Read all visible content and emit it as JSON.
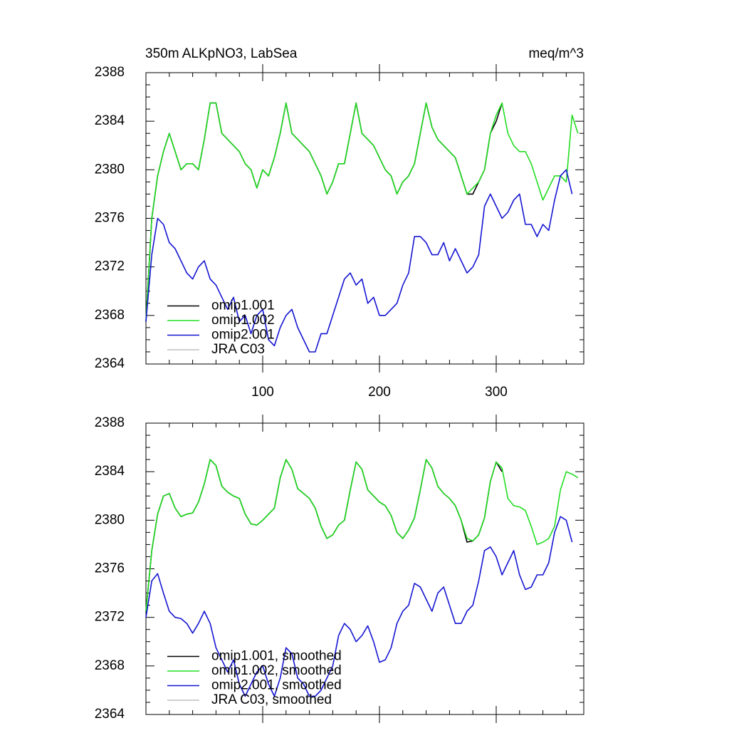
{
  "chart_data": [
    {
      "type": "line",
      "title": "350m ALKpNO3, LabSea",
      "units": "meq/m^3",
      "x": [
        0,
        5,
        10,
        15,
        20,
        25,
        30,
        35,
        40,
        45,
        50,
        55,
        60,
        65,
        70,
        75,
        80,
        85,
        90,
        95,
        100,
        105,
        110,
        115,
        120,
        125,
        130,
        135,
        140,
        145,
        150,
        155,
        160,
        165,
        170,
        175,
        180,
        185,
        190,
        195,
        200,
        205,
        210,
        215,
        220,
        225,
        230,
        235,
        240,
        245,
        250,
        255,
        260,
        265,
        270,
        275,
        280,
        285,
        290,
        295,
        300,
        305,
        310,
        315,
        320,
        325,
        330,
        335,
        340,
        345,
        350,
        355,
        360,
        365,
        370
      ],
      "xlim": [
        0,
        375
      ],
      "xticks": [
        100,
        200,
        300
      ],
      "ylim": [
        2364,
        2388
      ],
      "yticks": [
        2364,
        2368,
        2372,
        2376,
        2380,
        2384,
        2388
      ],
      "legend": "bottom-left",
      "series": [
        {
          "name": "omip1.001",
          "color": "#000000",
          "values": [
            2367.5,
            2376,
            2379.5,
            2381.5,
            2383,
            2381.5,
            2380,
            2380.5,
            2380.5,
            2380,
            2382.5,
            2385.5,
            2385.5,
            2383,
            2382.5,
            2382,
            2381.5,
            2380.5,
            2380,
            2378.5,
            2380,
            2379.5,
            2381,
            2383,
            2385.5,
            2383,
            2382.5,
            2382,
            2381.5,
            2380.5,
            2379.5,
            2378,
            2379,
            2380.5,
            2380.5,
            2383,
            2385.5,
            2383,
            2382.5,
            2382,
            2381,
            2380,
            2379.5,
            2378,
            2379,
            2379.5,
            2380.5,
            2383,
            2385.5,
            2383.5,
            2382.5,
            2382,
            2381.5,
            2381,
            2379.5,
            2378,
            2378,
            2379,
            2380,
            2383,
            2384,
            2385.5,
            null,
            null,
            null,
            null,
            null,
            null,
            null,
            null,
            null,
            null,
            null,
            null,
            null
          ]
        },
        {
          "name": "omip1.002",
          "color": "#22dd22",
          "values": [
            2367.5,
            2376,
            2379.5,
            2381.5,
            2383,
            2381.5,
            2380,
            2380.5,
            2380.5,
            2380,
            2382.5,
            2385.5,
            2385.5,
            2383,
            2382.5,
            2382,
            2381.5,
            2380.5,
            2380,
            2378.5,
            2380,
            2379.5,
            2381,
            2383,
            2385.5,
            2383,
            2382.5,
            2382,
            2381.5,
            2380.5,
            2379.5,
            2378,
            2379,
            2380.5,
            2380.5,
            2383,
            2385.5,
            2383,
            2382.5,
            2382,
            2381,
            2380,
            2379.5,
            2378,
            2379,
            2379.5,
            2380.5,
            2383,
            2385.5,
            2383.5,
            2382.5,
            2382,
            2381.5,
            2381,
            2379.5,
            2378,
            2378.5,
            2379,
            2380,
            2383,
            2384.5,
            2385.5,
            2383,
            2382,
            2381.5,
            2381.5,
            2380.5,
            2379,
            2377.5,
            2378.5,
            2379.5,
            2379.5,
            2379,
            2384.5,
            2383
          ]
        },
        {
          "name": "omip2.001",
          "color": "#1414d2",
          "values": [
            2367.5,
            2373,
            2376,
            2375.5,
            2374,
            2373.5,
            2372.5,
            2371.5,
            2371,
            2372,
            2372.5,
            2371,
            2370.5,
            2369.5,
            2368.5,
            2369.5,
            2367.5,
            2368,
            2366.5,
            2368,
            2368.5,
            2366,
            2365.5,
            2367,
            2368,
            2368.5,
            2367,
            2366,
            2365,
            2365,
            2366.5,
            2366.5,
            2368,
            2369.5,
            2371,
            2371.5,
            2370.5,
            2371,
            2369,
            2369.5,
            2368,
            2368,
            2368.5,
            2369,
            2370.5,
            2371.5,
            2374.5,
            2374.5,
            2374,
            2373,
            2373,
            2374,
            2372.5,
            2373.5,
            2372.5,
            2371.5,
            2372,
            2373,
            2377,
            2378,
            2377,
            2376,
            2376.5,
            2377.5,
            2378,
            2375.5,
            2375.5,
            2374.5,
            2375.5,
            2375,
            2377.5,
            2379.5,
            2380,
            2378,
            null
          ]
        },
        {
          "name": "JRA C03",
          "color": "#c0c0c0",
          "values": [
            null,
            null,
            null,
            null,
            null,
            null,
            null,
            null,
            null,
            null,
            null,
            null,
            null,
            null,
            null,
            null,
            null,
            null,
            null,
            null,
            null,
            null,
            null,
            null,
            null,
            null,
            null,
            null,
            null,
            null,
            null,
            null,
            null,
            null,
            null,
            null,
            null,
            null,
            null,
            null,
            null,
            null,
            null,
            null,
            null,
            null,
            null,
            null,
            null,
            null,
            null,
            null,
            null,
            null,
            null,
            null,
            null,
            null,
            null,
            null,
            null,
            null,
            null,
            null,
            null,
            null,
            null,
            null,
            null,
            null,
            null,
            null,
            null,
            null,
            null
          ]
        }
      ]
    },
    {
      "type": "line",
      "x": [
        0,
        5,
        10,
        15,
        20,
        25,
        30,
        35,
        40,
        45,
        50,
        55,
        60,
        65,
        70,
        75,
        80,
        85,
        90,
        95,
        100,
        105,
        110,
        115,
        120,
        125,
        130,
        135,
        140,
        145,
        150,
        155,
        160,
        165,
        170,
        175,
        180,
        185,
        190,
        195,
        200,
        205,
        210,
        215,
        220,
        225,
        230,
        235,
        240,
        245,
        250,
        255,
        260,
        265,
        270,
        275,
        280,
        285,
        290,
        295,
        300,
        305,
        310,
        315,
        320,
        325,
        330,
        335,
        340,
        345,
        350,
        355,
        360,
        365,
        370
      ],
      "xlim": [
        0,
        375
      ],
      "xticks": [
        100,
        200,
        300
      ],
      "ylim": [
        2364,
        2388
      ],
      "yticks": [
        2364,
        2368,
        2372,
        2376,
        2380,
        2384,
        2388
      ],
      "legend": "bottom-left",
      "series": [
        {
          "name": "omip1.001, smoothed",
          "color": "#000000",
          "values": [
            2372.5,
            2377.5,
            2380.5,
            2382,
            2382.2,
            2381,
            2380.3,
            2380.5,
            2380.6,
            2381.5,
            2383,
            2385,
            2384.5,
            2382.8,
            2382.3,
            2382,
            2381.8,
            2380.5,
            2379.7,
            2379.6,
            2380,
            2380.5,
            2381,
            2383.5,
            2385,
            2384.2,
            2382.6,
            2382.2,
            2381.8,
            2381,
            2379.5,
            2378.5,
            2378.8,
            2379.6,
            2380,
            2382.5,
            2384.8,
            2384.2,
            2382.5,
            2382,
            2381.5,
            2381.2,
            2380.4,
            2379,
            2378.5,
            2379.2,
            2380.2,
            2382.5,
            2385,
            2384.3,
            2382.8,
            2382.2,
            2381.8,
            2381.2,
            2380,
            2378.2,
            2378.3,
            2378.8,
            2380.2,
            2383.2,
            2384.8,
            2384,
            null,
            null,
            null,
            null,
            null,
            null,
            null,
            null,
            null,
            null,
            null,
            null,
            null
          ]
        },
        {
          "name": "omip1.002, smoothed",
          "color": "#22dd22",
          "values": [
            2372.5,
            2377.5,
            2380.5,
            2382,
            2382.2,
            2381,
            2380.3,
            2380.5,
            2380.6,
            2381.5,
            2383,
            2385,
            2384.5,
            2382.8,
            2382.3,
            2382,
            2381.8,
            2380.5,
            2379.7,
            2379.6,
            2380,
            2380.5,
            2381,
            2383.5,
            2385,
            2384.2,
            2382.6,
            2382.2,
            2381.8,
            2381,
            2379.5,
            2378.5,
            2378.8,
            2379.6,
            2380,
            2382.5,
            2384.8,
            2384.2,
            2382.5,
            2382,
            2381.5,
            2381.2,
            2380.4,
            2379,
            2378.5,
            2379.2,
            2380.2,
            2382.5,
            2385,
            2384.3,
            2382.8,
            2382.2,
            2381.8,
            2381.2,
            2380,
            2378.5,
            2378.3,
            2378.8,
            2380.2,
            2383.2,
            2384.8,
            2384.3,
            2381.8,
            2381.2,
            2381.1,
            2380.8,
            2379.5,
            2378,
            2378.2,
            2378.5,
            2379.5,
            2382.5,
            2384,
            2383.8,
            2383.5
          ]
        },
        {
          "name": "omip2.001, smoothed",
          "color": "#1414d2",
          "values": [
            2372,
            2375,
            2375.6,
            2374,
            2372.5,
            2372,
            2371.9,
            2371.5,
            2370.7,
            2371.5,
            2372.5,
            2371.5,
            2369.5,
            2368.5,
            2367.5,
            2368.5,
            2366.5,
            2365.5,
            2366.5,
            2367.5,
            2368,
            2366.5,
            2365.5,
            2367,
            2369.5,
            2369,
            2367,
            2366.5,
            2365.5,
            2365.5,
            2366,
            2367,
            2368,
            2370.5,
            2371.5,
            2371,
            2370,
            2370.5,
            2371.3,
            2370,
            2368.3,
            2368.5,
            2369.5,
            2371.5,
            2372.5,
            2373,
            2374.8,
            2374.5,
            2373.5,
            2372.5,
            2374,
            2374.5,
            2373,
            2371.5,
            2371.5,
            2372.5,
            2373,
            2375,
            2377.5,
            2377.8,
            2377,
            2375.5,
            2376.5,
            2377.5,
            2375.5,
            2374.3,
            2374.5,
            2375.5,
            2375.5,
            2376.5,
            2379,
            2380.3,
            2380,
            2378.2,
            null
          ]
        },
        {
          "name": "JRA C03, smoothed",
          "color": "#c0c0c0",
          "values": [
            null,
            null,
            null,
            null,
            null,
            null,
            null,
            null,
            null,
            null,
            null,
            null,
            null,
            null,
            null,
            null,
            null,
            null,
            null,
            null,
            null,
            null,
            null,
            null,
            null,
            null,
            null,
            null,
            null,
            null,
            null,
            null,
            null,
            null,
            null,
            null,
            null,
            null,
            null,
            null,
            null,
            null,
            null,
            null,
            null,
            null,
            null,
            null,
            null,
            null,
            null,
            null,
            null,
            null,
            null,
            null,
            null,
            null,
            null,
            null,
            null,
            null,
            null,
            null,
            null,
            null,
            null,
            null,
            null,
            null,
            null,
            null,
            null,
            null,
            null
          ]
        }
      ]
    }
  ]
}
